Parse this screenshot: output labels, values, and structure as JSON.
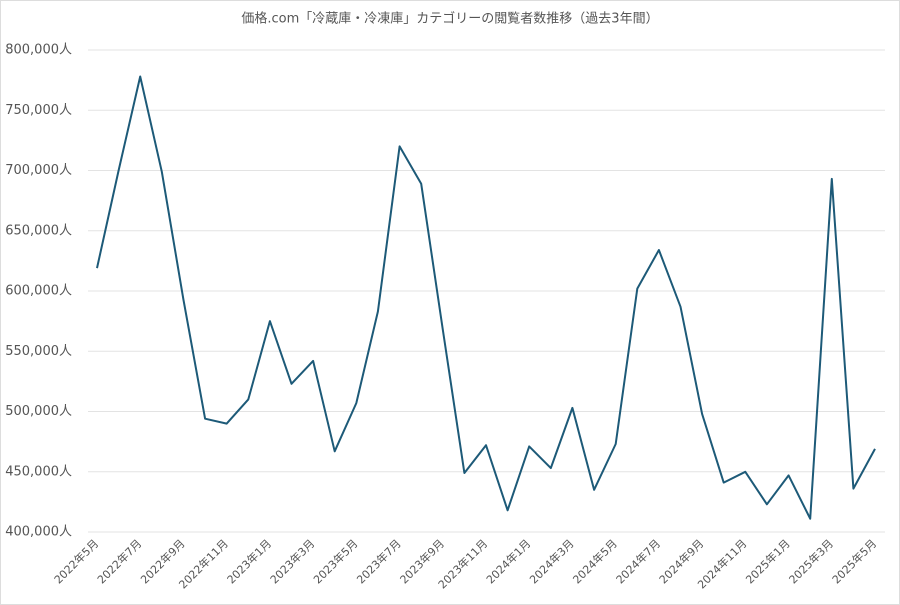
{
  "chart_data": {
    "type": "line",
    "title": "価格.com「冷蔵庫・冷凍庫」カテゴリーの閲覧者数推移（過去3年間）",
    "categories": [
      "2022年5月",
      null,
      "2022年7月",
      null,
      "2022年9月",
      null,
      "2022年11月",
      null,
      "2023年1月",
      null,
      "2023年3月",
      null,
      "2023年5月",
      null,
      "2023年7月",
      null,
      "2023年9月",
      null,
      "2023年11月",
      null,
      "2024年1月",
      null,
      "2024年3月",
      null,
      "2024年5月",
      null,
      "2024年7月",
      null,
      "2024年9月",
      null,
      "2024年11月",
      null,
      "2025年1月",
      null,
      "2025年3月",
      null,
      "2025年5月"
    ],
    "values": [
      619000,
      700000,
      778000,
      699000,
      593000,
      494000,
      490000,
      510000,
      575000,
      523000,
      542000,
      467000,
      507000,
      583000,
      720000,
      689000,
      568000,
      449000,
      472000,
      418000,
      471000,
      453000,
      503000,
      435000,
      473000,
      602000,
      634000,
      587000,
      498000,
      441000,
      450000,
      423000,
      447000,
      411000,
      693000,
      436000,
      469000
    ],
    "color": "#1d5a78",
    "ylim": [
      400000,
      800000
    ],
    "yticks": [
      {
        "value": 400000,
        "label": "400,000人"
      },
      {
        "value": 450000,
        "label": "450,000人"
      },
      {
        "value": 500000,
        "label": "500,000人"
      },
      {
        "value": 550000,
        "label": "550,000人"
      },
      {
        "value": 600000,
        "label": "600,000人"
      },
      {
        "value": 650000,
        "label": "650,000人"
      },
      {
        "value": 700000,
        "label": "700,000人"
      },
      {
        "value": 750000,
        "label": "750,000人"
      },
      {
        "value": 800000,
        "label": "800,000人"
      }
    ],
    "grid": true
  }
}
